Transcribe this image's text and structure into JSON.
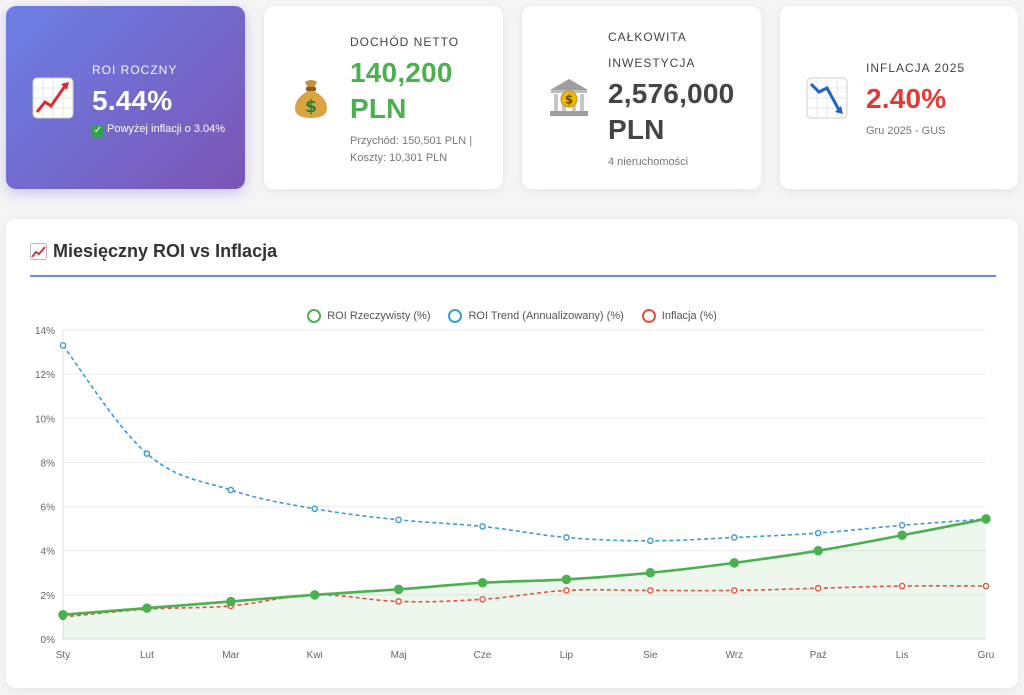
{
  "cards": {
    "roi": {
      "label": "ROI ROCZNY",
      "value": "5.44%",
      "sub": "Powyżej inflacji o 3.04%",
      "check": "✓",
      "icon": "chart-up-icon"
    },
    "net": {
      "label": "DOCHÓD NETTO",
      "value": "140,200 PLN",
      "sub": "Przychód: 150,501 PLN | Koszty: 10,301 PLN",
      "icon": "money-bag-icon"
    },
    "investment": {
      "label": "CAŁKOWITA INWESTYCJA",
      "value": "2,576,000 PLN",
      "sub": "4 nieruchomości",
      "icon": "bank-icon"
    },
    "inflation": {
      "label": "INFLACJA 2025",
      "value": "2.40%",
      "sub": "Gru 2025 - GUS",
      "icon": "chart-down-icon"
    }
  },
  "panel": {
    "title": "Miesięczny ROI vs Inflacja",
    "icon": "chart-up-icon"
  },
  "colors": {
    "green": "#4caf50",
    "blue": "#3b9ad9",
    "red": "#e0533d",
    "accent": "#5b7be6"
  },
  "chart_data": {
    "type": "line",
    "categories": [
      "Sty",
      "Lut",
      "Mar",
      "Kwi",
      "Maj",
      "Cze",
      "Lip",
      "Sie",
      "Wrz",
      "Paź",
      "Lis",
      "Gru"
    ],
    "series": [
      {
        "name": "ROI Rzeczywisty (%)",
        "color": "#4caf50",
        "style": "solid-area",
        "values": [
          1.1,
          1.4,
          1.7,
          2.0,
          2.25,
          2.55,
          2.7,
          3.0,
          3.45,
          4.0,
          4.7,
          5.44
        ]
      },
      {
        "name": "ROI Trend (Annualizowany) (%)",
        "color": "#3b9ad9",
        "style": "dashed",
        "values": [
          13.3,
          8.4,
          6.75,
          5.9,
          5.4,
          5.1,
          4.6,
          4.45,
          4.6,
          4.8,
          5.15,
          5.44
        ]
      },
      {
        "name": "Inflacja (%)",
        "color": "#e0533d",
        "style": "dashed",
        "values": [
          1.0,
          1.35,
          1.5,
          2.0,
          1.7,
          1.8,
          2.2,
          2.2,
          2.2,
          2.3,
          2.4,
          2.4
        ]
      }
    ],
    "yticks": [
      "0%",
      "2%",
      "4%",
      "6%",
      "8%",
      "10%",
      "12%",
      "14%"
    ],
    "ylim": [
      0,
      14
    ],
    "grid": true,
    "legend": "top-center"
  }
}
